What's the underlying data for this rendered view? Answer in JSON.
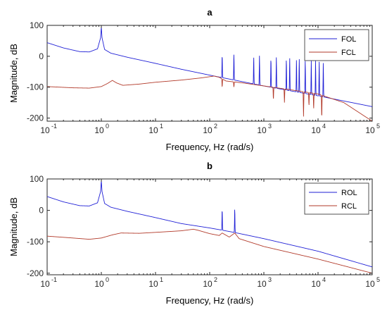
{
  "chart_data": [
    {
      "type": "line",
      "title": "a",
      "xlabel": "Frequency, Hz (rad/s)",
      "ylabel": "Magnitude, dB",
      "xscale": "log",
      "xlim": [
        0.1,
        100000
      ],
      "ylim": [
        -210,
        100
      ],
      "xticks": [
        0.1,
        1,
        10,
        100,
        1000,
        10000,
        100000
      ],
      "xtick_labels": [
        "10",
        "10",
        "10",
        "10",
        "10",
        "10",
        "10"
      ],
      "xtick_exponents": [
        "-1",
        "0",
        "1",
        "2",
        "3",
        "4",
        "5"
      ],
      "yticks": [
        100,
        0,
        -100,
        -200
      ],
      "ytick_labels": [
        "100",
        "0",
        "-100",
        "-200"
      ],
      "legend_position": "top-right",
      "grid": false,
      "series": [
        {
          "name": "FOL",
          "color": "#1f1fd6",
          "base": [
            [
              0.1,
              44
            ],
            [
              0.2,
              27
            ],
            [
              0.4,
              15
            ],
            [
              0.6,
              14
            ],
            [
              0.85,
              24
            ],
            [
              0.97,
              60
            ],
            [
              1.0,
              96
            ],
            [
              1.03,
              60
            ],
            [
              1.15,
              22
            ],
            [
              1.5,
              10
            ],
            [
              3,
              -3
            ],
            [
              10,
              -23
            ],
            [
              30,
              -42
            ],
            [
              100,
              -61
            ],
            [
              1000,
              -96
            ],
            [
              10000,
              -128
            ],
            [
              100000,
              -163
            ]
          ],
          "resonances": [
            [
              170,
              5
            ],
            [
              280,
              8
            ],
            [
              650,
              -2
            ],
            [
              830,
              2
            ],
            [
              1350,
              -5
            ],
            [
              1700,
              -3
            ],
            [
              2600,
              -8
            ],
            [
              3000,
              -6
            ],
            [
              4000,
              -10
            ],
            [
              4500,
              -8
            ],
            [
              5800,
              -12
            ],
            [
              7500,
              -15
            ],
            [
              9000,
              -14
            ],
            [
              10500,
              -18
            ],
            [
              12500,
              -20
            ]
          ],
          "antiresonances": []
        },
        {
          "name": "FCL",
          "color": "#b23a2a",
          "base": [
            [
              0.1,
              -98
            ],
            [
              0.3,
              -102
            ],
            [
              0.6,
              -103
            ],
            [
              1.0,
              -98
            ],
            [
              1.3,
              -88
            ],
            [
              1.6,
              -78
            ],
            [
              1.9,
              -86
            ],
            [
              2.5,
              -94
            ],
            [
              5,
              -90
            ],
            [
              10,
              -84
            ],
            [
              30,
              -77
            ],
            [
              70,
              -70
            ],
            [
              120,
              -64
            ],
            [
              150,
              -68
            ],
            [
              200,
              -80
            ],
            [
              400,
              -86
            ],
            [
              1000,
              -96
            ],
            [
              3000,
              -108
            ],
            [
              10000,
              -122
            ],
            [
              30000,
              -150
            ],
            [
              100000,
              -210
            ]
          ],
          "resonances": [
            [
              650,
              -60
            ],
            [
              1350,
              -70
            ],
            [
              1700,
              -65
            ],
            [
              2600,
              -72
            ],
            [
              3000,
              -68
            ],
            [
              4000,
              -74
            ],
            [
              4500,
              -70
            ],
            [
              5800,
              -78
            ],
            [
              7500,
              -80
            ],
            [
              9000,
              -78
            ],
            [
              10500,
              -85
            ],
            [
              12500,
              -88
            ]
          ],
          "antiresonances": [
            [
              170,
              -100
            ],
            [
              280,
              -100
            ],
            [
              1500,
              -140
            ],
            [
              2400,
              -150
            ],
            [
              5400,
              -195
            ],
            [
              6800,
              -160
            ],
            [
              8300,
              -170
            ],
            [
              11700,
              -200
            ]
          ]
        }
      ]
    },
    {
      "type": "line",
      "title": "b",
      "xlabel": "Frequency, Hz (rad/s)",
      "ylabel": "Magnitude, dB",
      "xscale": "log",
      "xlim": [
        0.1,
        100000
      ],
      "ylim": [
        -205,
        100
      ],
      "xticks": [
        0.1,
        1,
        10,
        100,
        1000,
        10000,
        100000
      ],
      "xtick_labels": [
        "10",
        "10",
        "10",
        "10",
        "10",
        "10",
        "10"
      ],
      "xtick_exponents": [
        "-1",
        "0",
        "1",
        "2",
        "3",
        "4",
        "5"
      ],
      "yticks": [
        100,
        0,
        -100,
        -200
      ],
      "ytick_labels": [
        "100",
        "0",
        "-100",
        "-200"
      ],
      "legend_position": "top-right",
      "grid": false,
      "series": [
        {
          "name": "ROL",
          "color": "#1f1fd6",
          "base": [
            [
              0.1,
              44
            ],
            [
              0.2,
              27
            ],
            [
              0.4,
              15
            ],
            [
              0.6,
              14
            ],
            [
              0.85,
              24
            ],
            [
              0.97,
              60
            ],
            [
              1.0,
              96
            ],
            [
              1.03,
              60
            ],
            [
              1.15,
              22
            ],
            [
              1.5,
              10
            ],
            [
              3,
              -3
            ],
            [
              10,
              -23
            ],
            [
              30,
              -42
            ],
            [
              100,
              -56
            ],
            [
              170,
              -63
            ],
            [
              280,
              -70
            ],
            [
              1000,
              -90
            ],
            [
              10000,
              -130
            ],
            [
              100000,
              -180
            ]
          ],
          "resonances": [
            [
              170,
              4
            ],
            [
              290,
              6
            ]
          ],
          "antiresonances": []
        },
        {
          "name": "RCL",
          "color": "#b23a2a",
          "base": [
            [
              0.1,
              -82
            ],
            [
              0.3,
              -88
            ],
            [
              0.6,
              -92
            ],
            [
              1.0,
              -88
            ],
            [
              1.6,
              -78
            ],
            [
              2.3,
              -72
            ],
            [
              5,
              -73
            ],
            [
              10,
              -70
            ],
            [
              30,
              -65
            ],
            [
              50,
              -60
            ],
            [
              60,
              -63
            ],
            [
              100,
              -74
            ],
            [
              150,
              -80
            ],
            [
              170,
              -72
            ],
            [
              230,
              -85
            ],
            [
              290,
              -72
            ],
            [
              350,
              -90
            ],
            [
              1000,
              -115
            ],
            [
              10000,
              -155
            ],
            [
              100000,
              -200
            ]
          ],
          "resonances": [],
          "antiresonances": []
        }
      ]
    }
  ]
}
